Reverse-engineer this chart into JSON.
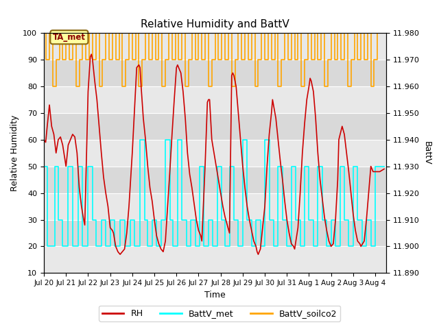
{
  "title": "Relative Humidity and BattV",
  "xlabel": "Time",
  "ylabel_left": "Relative Humidity",
  "ylabel_right": "BattV",
  "ylim_left": [
    10,
    100
  ],
  "ylim_right": [
    11.89,
    11.98
  ],
  "yticks_left": [
    10,
    20,
    30,
    40,
    50,
    60,
    70,
    80,
    90,
    100
  ],
  "yticks_right": [
    11.89,
    11.9,
    11.91,
    11.92,
    11.93,
    11.94,
    11.95,
    11.96,
    11.97,
    11.98
  ],
  "annotation_text": "TA_met",
  "bg_band_color": "#d3d3d3",
  "bg_band_alpha": 0.5,
  "rh_color": "#cc0000",
  "battv_met_color": "#00ffff",
  "battv_soilco2_color": "#ffa500",
  "rh_linewidth": 1.2,
  "battv_linewidth": 1.2,
  "legend_labels": [
    "RH",
    "BattV_met",
    "BattV_soilco2"
  ],
  "legend_colors": [
    "#cc0000",
    "#00ffff",
    "#ffa500"
  ],
  "grid_color": "#ffffff",
  "bg_color": "#e8e8e8",
  "xtick_labels": [
    "Jul 20",
    "Jul 21",
    "Jul 22",
    "Jul 23",
    "Jul 24",
    "Jul 25",
    "Jul 26",
    "Jul 27",
    "Jul 28",
    "Jul 29",
    "Jul 30",
    "Jul 31",
    "Aug 1",
    "Aug 2",
    "Aug 3",
    "Aug 4"
  ],
  "xtick_positions": [
    0,
    1,
    2,
    3,
    4,
    5,
    6,
    7,
    8,
    9,
    10,
    11,
    12,
    13,
    14,
    15
  ],
  "rh_data": [
    [
      0.0,
      60
    ],
    [
      0.08,
      59
    ],
    [
      0.15,
      65
    ],
    [
      0.25,
      73
    ],
    [
      0.35,
      65
    ],
    [
      0.45,
      62
    ],
    [
      0.55,
      55
    ],
    [
      0.65,
      60
    ],
    [
      0.75,
      61
    ],
    [
      0.85,
      58
    ],
    [
      1.0,
      50
    ],
    [
      1.1,
      58
    ],
    [
      1.2,
      60
    ],
    [
      1.3,
      62
    ],
    [
      1.4,
      61
    ],
    [
      1.5,
      55
    ],
    [
      1.6,
      42
    ],
    [
      1.7,
      35
    ],
    [
      1.8,
      30
    ],
    [
      1.85,
      28
    ],
    [
      2.0,
      78
    ],
    [
      2.1,
      91
    ],
    [
      2.15,
      92
    ],
    [
      2.2,
      90
    ],
    [
      2.3,
      82
    ],
    [
      2.4,
      75
    ],
    [
      2.5,
      65
    ],
    [
      2.6,
      55
    ],
    [
      2.7,
      46
    ],
    [
      2.8,
      40
    ],
    [
      2.9,
      35
    ],
    [
      3.0,
      27
    ],
    [
      3.1,
      26
    ],
    [
      3.15,
      25
    ],
    [
      3.25,
      20
    ],
    [
      3.35,
      18
    ],
    [
      3.45,
      17
    ],
    [
      3.55,
      18
    ],
    [
      3.65,
      19
    ],
    [
      3.75,
      25
    ],
    [
      3.85,
      35
    ],
    [
      4.0,
      55
    ],
    [
      4.1,
      71
    ],
    [
      4.2,
      87
    ],
    [
      4.3,
      88
    ],
    [
      4.35,
      87
    ],
    [
      4.4,
      80
    ],
    [
      4.5,
      68
    ],
    [
      4.6,
      60
    ],
    [
      4.7,
      50
    ],
    [
      4.8,
      42
    ],
    [
      4.9,
      37
    ],
    [
      5.0,
      30
    ],
    [
      5.1,
      24
    ],
    [
      5.2,
      21
    ],
    [
      5.3,
      19
    ],
    [
      5.4,
      18
    ],
    [
      5.5,
      22
    ],
    [
      5.6,
      35
    ],
    [
      5.7,
      48
    ],
    [
      5.8,
      62
    ],
    [
      5.9,
      75
    ],
    [
      6.0,
      87
    ],
    [
      6.05,
      88
    ],
    [
      6.1,
      87
    ],
    [
      6.2,
      85
    ],
    [
      6.3,
      78
    ],
    [
      6.4,
      68
    ],
    [
      6.5,
      55
    ],
    [
      6.6,
      47
    ],
    [
      6.7,
      42
    ],
    [
      6.8,
      36
    ],
    [
      6.9,
      30
    ],
    [
      7.0,
      26
    ],
    [
      7.1,
      24
    ],
    [
      7.15,
      22
    ],
    [
      7.3,
      51
    ],
    [
      7.4,
      74
    ],
    [
      7.45,
      75
    ],
    [
      7.5,
      75
    ],
    [
      7.6,
      60
    ],
    [
      7.7,
      55
    ],
    [
      7.8,
      50
    ],
    [
      7.9,
      45
    ],
    [
      8.0,
      40
    ],
    [
      8.1,
      35
    ],
    [
      8.2,
      31
    ],
    [
      8.3,
      28
    ],
    [
      8.4,
      25
    ],
    [
      8.5,
      84
    ],
    [
      8.55,
      85
    ],
    [
      8.6,
      84
    ],
    [
      8.7,
      80
    ],
    [
      8.8,
      70
    ],
    [
      8.9,
      60
    ],
    [
      9.0,
      50
    ],
    [
      9.1,
      42
    ],
    [
      9.2,
      35
    ],
    [
      9.3,
      30
    ],
    [
      9.4,
      26
    ],
    [
      9.5,
      22
    ],
    [
      9.6,
      20
    ],
    [
      9.65,
      18
    ],
    [
      9.7,
      17
    ],
    [
      9.8,
      19
    ],
    [
      10.0,
      35
    ],
    [
      10.1,
      50
    ],
    [
      10.2,
      62
    ],
    [
      10.3,
      70
    ],
    [
      10.35,
      75
    ],
    [
      10.5,
      68
    ],
    [
      10.6,
      60
    ],
    [
      10.7,
      52
    ],
    [
      10.8,
      45
    ],
    [
      10.9,
      37
    ],
    [
      11.0,
      30
    ],
    [
      11.1,
      25
    ],
    [
      11.2,
      21
    ],
    [
      11.3,
      20
    ],
    [
      11.35,
      19
    ],
    [
      11.5,
      27
    ],
    [
      11.6,
      40
    ],
    [
      11.7,
      55
    ],
    [
      11.8,
      66
    ],
    [
      11.9,
      75
    ],
    [
      12.0,
      80
    ],
    [
      12.05,
      83
    ],
    [
      12.1,
      82
    ],
    [
      12.2,
      78
    ],
    [
      12.3,
      68
    ],
    [
      12.4,
      55
    ],
    [
      12.5,
      45
    ],
    [
      12.6,
      38
    ],
    [
      12.7,
      31
    ],
    [
      12.8,
      26
    ],
    [
      12.9,
      22
    ],
    [
      13.0,
      20
    ],
    [
      13.1,
      21
    ],
    [
      13.2,
      30
    ],
    [
      13.3,
      45
    ],
    [
      13.35,
      60
    ],
    [
      13.5,
      65
    ],
    [
      13.6,
      62
    ],
    [
      13.7,
      55
    ],
    [
      13.8,
      48
    ],
    [
      13.9,
      40
    ],
    [
      14.0,
      32
    ],
    [
      14.1,
      26
    ],
    [
      14.2,
      22
    ],
    [
      14.3,
      21
    ],
    [
      14.35,
      20
    ],
    [
      14.5,
      22
    ],
    [
      14.6,
      30
    ],
    [
      14.7,
      40
    ],
    [
      14.8,
      50
    ],
    [
      14.9,
      48
    ],
    [
      15.0,
      48
    ],
    [
      15.2,
      48
    ],
    [
      15.4,
      49
    ]
  ],
  "battv_met_data": [
    [
      0.0,
      50
    ],
    [
      0.15,
      50
    ],
    [
      0.15,
      20
    ],
    [
      0.5,
      20
    ],
    [
      0.5,
      50
    ],
    [
      0.65,
      50
    ],
    [
      0.65,
      30
    ],
    [
      0.85,
      30
    ],
    [
      0.85,
      20
    ],
    [
      1.1,
      20
    ],
    [
      1.1,
      50
    ],
    [
      1.3,
      50
    ],
    [
      1.3,
      20
    ],
    [
      1.55,
      20
    ],
    [
      1.55,
      50
    ],
    [
      1.75,
      50
    ],
    [
      1.75,
      20
    ],
    [
      2.0,
      20
    ],
    [
      2.0,
      50
    ],
    [
      2.2,
      50
    ],
    [
      2.2,
      30
    ],
    [
      2.35,
      30
    ],
    [
      2.35,
      20
    ],
    [
      2.6,
      20
    ],
    [
      2.6,
      30
    ],
    [
      2.8,
      30
    ],
    [
      2.8,
      20
    ],
    [
      3.0,
      20
    ],
    [
      3.0,
      30
    ],
    [
      3.2,
      30
    ],
    [
      3.2,
      20
    ],
    [
      3.45,
      20
    ],
    [
      3.45,
      30
    ],
    [
      3.65,
      30
    ],
    [
      3.65,
      20
    ],
    [
      3.9,
      20
    ],
    [
      3.9,
      30
    ],
    [
      4.1,
      30
    ],
    [
      4.1,
      20
    ],
    [
      4.35,
      20
    ],
    [
      4.35,
      60
    ],
    [
      4.55,
      60
    ],
    [
      4.55,
      30
    ],
    [
      4.7,
      30
    ],
    [
      4.7,
      20
    ],
    [
      4.9,
      20
    ],
    [
      4.9,
      30
    ],
    [
      5.1,
      30
    ],
    [
      5.1,
      20
    ],
    [
      5.3,
      20
    ],
    [
      5.3,
      30
    ],
    [
      5.5,
      30
    ],
    [
      5.5,
      60
    ],
    [
      5.7,
      60
    ],
    [
      5.7,
      30
    ],
    [
      5.85,
      30
    ],
    [
      5.85,
      20
    ],
    [
      6.05,
      20
    ],
    [
      6.05,
      60
    ],
    [
      6.25,
      60
    ],
    [
      6.25,
      30
    ],
    [
      6.45,
      30
    ],
    [
      6.45,
      20
    ],
    [
      6.65,
      20
    ],
    [
      6.65,
      30
    ],
    [
      6.85,
      30
    ],
    [
      6.85,
      20
    ],
    [
      7.05,
      20
    ],
    [
      7.05,
      50
    ],
    [
      7.25,
      50
    ],
    [
      7.25,
      20
    ],
    [
      7.45,
      20
    ],
    [
      7.45,
      30
    ],
    [
      7.65,
      30
    ],
    [
      7.65,
      20
    ],
    [
      7.85,
      20
    ],
    [
      7.85,
      50
    ],
    [
      8.05,
      50
    ],
    [
      8.05,
      30
    ],
    [
      8.2,
      30
    ],
    [
      8.2,
      20
    ],
    [
      8.4,
      20
    ],
    [
      8.4,
      50
    ],
    [
      8.6,
      50
    ],
    [
      8.6,
      30
    ],
    [
      8.8,
      30
    ],
    [
      8.8,
      20
    ],
    [
      9.0,
      20
    ],
    [
      9.0,
      60
    ],
    [
      9.2,
      60
    ],
    [
      9.2,
      30
    ],
    [
      9.4,
      30
    ],
    [
      9.4,
      20
    ],
    [
      9.6,
      20
    ],
    [
      9.6,
      30
    ],
    [
      9.8,
      30
    ],
    [
      9.8,
      20
    ],
    [
      10.0,
      20
    ],
    [
      10.0,
      60
    ],
    [
      10.2,
      60
    ],
    [
      10.2,
      30
    ],
    [
      10.4,
      30
    ],
    [
      10.4,
      20
    ],
    [
      10.6,
      20
    ],
    [
      10.6,
      50
    ],
    [
      10.8,
      50
    ],
    [
      10.8,
      30
    ],
    [
      11.0,
      30
    ],
    [
      11.0,
      20
    ],
    [
      11.2,
      20
    ],
    [
      11.2,
      50
    ],
    [
      11.4,
      50
    ],
    [
      11.4,
      30
    ],
    [
      11.6,
      30
    ],
    [
      11.6,
      20
    ],
    [
      11.8,
      20
    ],
    [
      11.8,
      50
    ],
    [
      12.0,
      50
    ],
    [
      12.0,
      30
    ],
    [
      12.2,
      30
    ],
    [
      12.2,
      20
    ],
    [
      12.4,
      20
    ],
    [
      12.4,
      50
    ],
    [
      12.6,
      50
    ],
    [
      12.6,
      30
    ],
    [
      12.8,
      30
    ],
    [
      12.8,
      20
    ],
    [
      13.0,
      20
    ],
    [
      13.0,
      30
    ],
    [
      13.2,
      30
    ],
    [
      13.2,
      20
    ],
    [
      13.4,
      20
    ],
    [
      13.4,
      50
    ],
    [
      13.6,
      50
    ],
    [
      13.6,
      30
    ],
    [
      13.8,
      30
    ],
    [
      13.8,
      20
    ],
    [
      14.0,
      20
    ],
    [
      14.0,
      50
    ],
    [
      14.2,
      50
    ],
    [
      14.2,
      30
    ],
    [
      14.4,
      30
    ],
    [
      14.4,
      20
    ],
    [
      14.6,
      20
    ],
    [
      14.6,
      30
    ],
    [
      14.8,
      30
    ],
    [
      14.8,
      20
    ],
    [
      15.0,
      20
    ],
    [
      15.0,
      50
    ],
    [
      15.4,
      50
    ]
  ],
  "battv_soilco2_data": [
    [
      0.0,
      100
    ],
    [
      0.1,
      100
    ],
    [
      0.1,
      90
    ],
    [
      0.25,
      90
    ],
    [
      0.25,
      100
    ],
    [
      0.4,
      100
    ],
    [
      0.4,
      80
    ],
    [
      0.55,
      80
    ],
    [
      0.55,
      90
    ],
    [
      0.7,
      90
    ],
    [
      0.7,
      100
    ],
    [
      0.85,
      100
    ],
    [
      0.85,
      90
    ],
    [
      1.0,
      90
    ],
    [
      1.0,
      100
    ],
    [
      1.15,
      100
    ],
    [
      1.15,
      90
    ],
    [
      1.3,
      90
    ],
    [
      1.3,
      100
    ],
    [
      1.45,
      100
    ],
    [
      1.45,
      80
    ],
    [
      1.6,
      80
    ],
    [
      1.6,
      90
    ],
    [
      1.75,
      90
    ],
    [
      1.75,
      100
    ],
    [
      1.9,
      100
    ],
    [
      1.9,
      90
    ],
    [
      2.05,
      90
    ],
    [
      2.05,
      100
    ],
    [
      2.2,
      100
    ],
    [
      2.2,
      90
    ],
    [
      2.35,
      90
    ],
    [
      2.35,
      100
    ],
    [
      2.5,
      100
    ],
    [
      2.5,
      80
    ],
    [
      2.65,
      80
    ],
    [
      2.65,
      90
    ],
    [
      2.8,
      90
    ],
    [
      2.8,
      100
    ],
    [
      2.95,
      100
    ],
    [
      2.95,
      90
    ],
    [
      3.1,
      90
    ],
    [
      3.1,
      100
    ],
    [
      3.25,
      100
    ],
    [
      3.25,
      90
    ],
    [
      3.4,
      90
    ],
    [
      3.4,
      100
    ],
    [
      3.55,
      100
    ],
    [
      3.55,
      80
    ],
    [
      3.7,
      80
    ],
    [
      3.7,
      90
    ],
    [
      3.85,
      90
    ],
    [
      3.85,
      100
    ],
    [
      4.0,
      100
    ],
    [
      4.0,
      90
    ],
    [
      4.15,
      90
    ],
    [
      4.15,
      100
    ],
    [
      4.3,
      100
    ],
    [
      4.3,
      80
    ],
    [
      4.45,
      80
    ],
    [
      4.45,
      90
    ],
    [
      4.6,
      90
    ],
    [
      4.6,
      100
    ],
    [
      4.75,
      100
    ],
    [
      4.75,
      90
    ],
    [
      4.9,
      90
    ],
    [
      4.9,
      100
    ],
    [
      5.05,
      100
    ],
    [
      5.05,
      90
    ],
    [
      5.2,
      90
    ],
    [
      5.2,
      100
    ],
    [
      5.35,
      100
    ],
    [
      5.35,
      80
    ],
    [
      5.5,
      80
    ],
    [
      5.5,
      90
    ],
    [
      5.65,
      90
    ],
    [
      5.65,
      100
    ],
    [
      5.8,
      100
    ],
    [
      5.8,
      90
    ],
    [
      5.95,
      90
    ],
    [
      5.95,
      100
    ],
    [
      6.1,
      100
    ],
    [
      6.1,
      90
    ],
    [
      6.25,
      90
    ],
    [
      6.25,
      100
    ],
    [
      6.4,
      100
    ],
    [
      6.4,
      80
    ],
    [
      6.55,
      80
    ],
    [
      6.55,
      90
    ],
    [
      6.7,
      90
    ],
    [
      6.7,
      100
    ],
    [
      6.85,
      100
    ],
    [
      6.85,
      90
    ],
    [
      7.0,
      90
    ],
    [
      7.0,
      100
    ],
    [
      7.15,
      100
    ],
    [
      7.15,
      90
    ],
    [
      7.3,
      90
    ],
    [
      7.3,
      100
    ],
    [
      7.45,
      100
    ],
    [
      7.45,
      80
    ],
    [
      7.6,
      80
    ],
    [
      7.6,
      90
    ],
    [
      7.75,
      90
    ],
    [
      7.75,
      100
    ],
    [
      7.9,
      100
    ],
    [
      7.9,
      90
    ],
    [
      8.05,
      90
    ],
    [
      8.05,
      100
    ],
    [
      8.2,
      100
    ],
    [
      8.2,
      90
    ],
    [
      8.35,
      90
    ],
    [
      8.35,
      100
    ],
    [
      8.5,
      100
    ],
    [
      8.5,
      80
    ],
    [
      8.65,
      80
    ],
    [
      8.65,
      90
    ],
    [
      8.8,
      90
    ],
    [
      8.8,
      100
    ],
    [
      8.95,
      100
    ],
    [
      8.95,
      90
    ],
    [
      9.1,
      90
    ],
    [
      9.1,
      100
    ],
    [
      9.25,
      100
    ],
    [
      9.25,
      90
    ],
    [
      9.4,
      90
    ],
    [
      9.4,
      100
    ],
    [
      9.55,
      100
    ],
    [
      9.55,
      80
    ],
    [
      9.7,
      80
    ],
    [
      9.7,
      90
    ],
    [
      9.85,
      90
    ],
    [
      9.85,
      100
    ],
    [
      10.0,
      100
    ],
    [
      10.0,
      90
    ],
    [
      10.15,
      90
    ],
    [
      10.15,
      100
    ],
    [
      10.3,
      100
    ],
    [
      10.3,
      90
    ],
    [
      10.45,
      90
    ],
    [
      10.45,
      100
    ],
    [
      10.6,
      100
    ],
    [
      10.6,
      80
    ],
    [
      10.75,
      80
    ],
    [
      10.75,
      90
    ],
    [
      10.9,
      90
    ],
    [
      10.9,
      100
    ],
    [
      11.05,
      100
    ],
    [
      11.05,
      90
    ],
    [
      11.2,
      90
    ],
    [
      11.2,
      100
    ],
    [
      11.35,
      100
    ],
    [
      11.35,
      90
    ],
    [
      11.5,
      90
    ],
    [
      11.5,
      100
    ],
    [
      11.65,
      100
    ],
    [
      11.65,
      80
    ],
    [
      11.8,
      80
    ],
    [
      11.8,
      90
    ],
    [
      11.95,
      90
    ],
    [
      11.95,
      100
    ],
    [
      12.1,
      100
    ],
    [
      12.1,
      90
    ],
    [
      12.25,
      90
    ],
    [
      12.25,
      100
    ],
    [
      12.4,
      100
    ],
    [
      12.4,
      90
    ],
    [
      12.55,
      90
    ],
    [
      12.55,
      100
    ],
    [
      12.7,
      100
    ],
    [
      12.7,
      80
    ],
    [
      12.85,
      80
    ],
    [
      12.85,
      90
    ],
    [
      13.0,
      90
    ],
    [
      13.0,
      100
    ],
    [
      13.15,
      100
    ],
    [
      13.15,
      90
    ],
    [
      13.3,
      90
    ],
    [
      13.3,
      100
    ],
    [
      13.45,
      100
    ],
    [
      13.45,
      90
    ],
    [
      13.6,
      90
    ],
    [
      13.6,
      100
    ],
    [
      13.75,
      100
    ],
    [
      13.75,
      80
    ],
    [
      13.9,
      80
    ],
    [
      13.9,
      90
    ],
    [
      14.05,
      90
    ],
    [
      14.05,
      100
    ],
    [
      14.2,
      100
    ],
    [
      14.2,
      90
    ],
    [
      14.35,
      90
    ],
    [
      14.35,
      100
    ],
    [
      14.5,
      100
    ],
    [
      14.5,
      90
    ],
    [
      14.65,
      90
    ],
    [
      14.65,
      100
    ],
    [
      14.8,
      100
    ],
    [
      14.8,
      80
    ],
    [
      14.95,
      80
    ],
    [
      14.95,
      90
    ],
    [
      15.1,
      90
    ],
    [
      15.1,
      100
    ],
    [
      15.4,
      100
    ]
  ]
}
